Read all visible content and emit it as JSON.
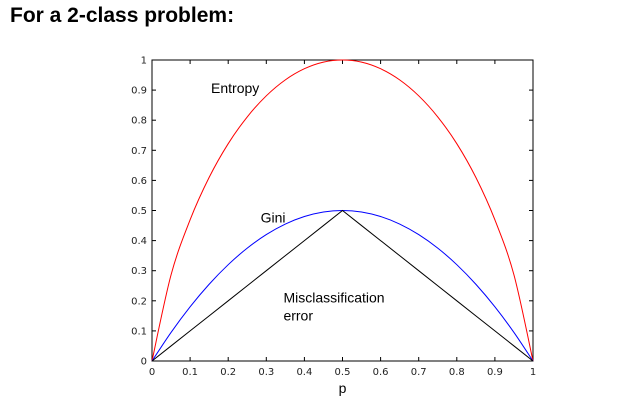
{
  "heading": "For a 2-class problem:",
  "chart_data": {
    "type": "line",
    "title": "",
    "xlabel": "p",
    "ylabel": "",
    "xlim": [
      0,
      1
    ],
    "ylim": [
      0,
      1
    ],
    "grid": false,
    "x_ticks": [
      "0",
      "0.1",
      "0.2",
      "0.3",
      "0.4",
      "0.5",
      "0.6",
      "0.7",
      "0.8",
      "0.9",
      "1"
    ],
    "y_ticks": [
      "0",
      "0.1",
      "0.2",
      "0.3",
      "0.4",
      "0.5",
      "0.6",
      "0.7",
      "0.8",
      "0.9",
      "1"
    ],
    "x": [
      0,
      0.05,
      0.1,
      0.15,
      0.2,
      0.25,
      0.3,
      0.35,
      0.4,
      0.45,
      0.5,
      0.55,
      0.6,
      0.65,
      0.7,
      0.75,
      0.8,
      0.85,
      0.9,
      0.95,
      1
    ],
    "series": [
      {
        "name": "Entropy",
        "color": "#ff0000",
        "values": [
          0,
          0.286,
          0.469,
          0.61,
          0.722,
          0.811,
          0.881,
          0.934,
          0.971,
          0.993,
          1,
          0.993,
          0.971,
          0.934,
          0.881,
          0.811,
          0.722,
          0.61,
          0.469,
          0.286,
          0
        ]
      },
      {
        "name": "Gini",
        "color": "#0000ff",
        "values": [
          0,
          0.095,
          0.18,
          0.255,
          0.32,
          0.375,
          0.42,
          0.455,
          0.48,
          0.495,
          0.5,
          0.495,
          0.48,
          0.455,
          0.42,
          0.375,
          0.32,
          0.255,
          0.18,
          0.095,
          0
        ]
      },
      {
        "name": "Misclassification error",
        "color": "#000000",
        "values": [
          0,
          0.05,
          0.1,
          0.15,
          0.2,
          0.25,
          0.3,
          0.35,
          0.4,
          0.45,
          0.5,
          0.45,
          0.4,
          0.35,
          0.3,
          0.25,
          0.2,
          0.15,
          0.1,
          0.05,
          0
        ]
      }
    ],
    "annotations": [
      {
        "lines": [
          "Entropy"
        ],
        "x": 0.155,
        "y": 0.89
      },
      {
        "lines": [
          "Gini"
        ],
        "x": 0.285,
        "y": 0.46
      },
      {
        "lines": [
          "Misclassification",
          "error"
        ],
        "x": 0.345,
        "y": 0.195
      }
    ]
  }
}
